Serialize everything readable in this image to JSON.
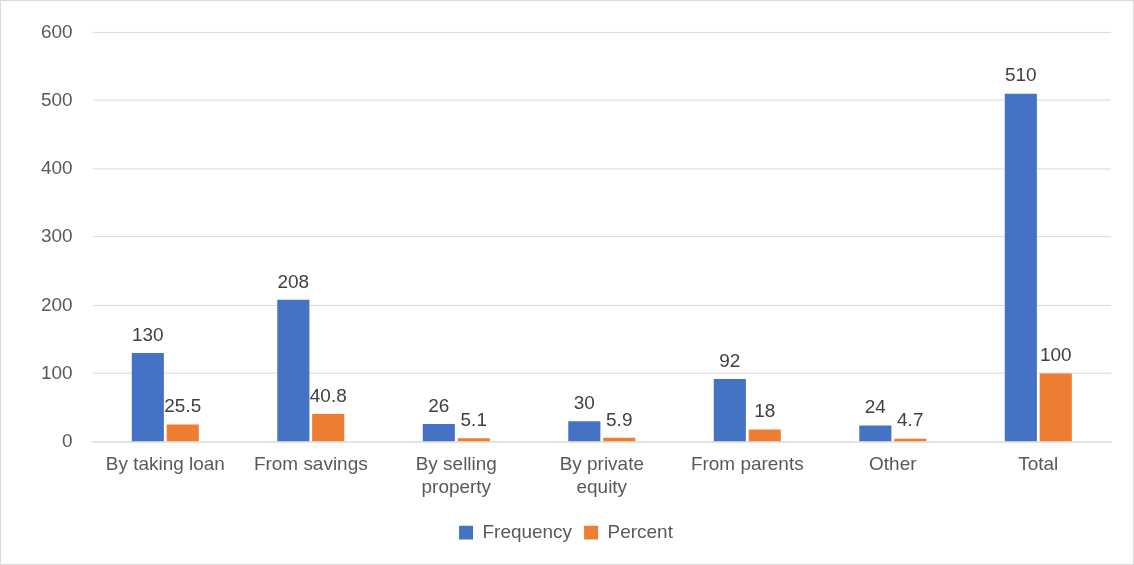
{
  "chart_data": {
    "type": "bar",
    "categories": [
      "By taking loan",
      "From savings",
      "By selling property",
      "By private equity",
      "From parents",
      "Other",
      "Total"
    ],
    "series": [
      {
        "name": "Frequency",
        "color": "#4472c4",
        "values": [
          130,
          208,
          26,
          30,
          92,
          24,
          510
        ]
      },
      {
        "name": "Percent",
        "color": "#ed7d31",
        "values": [
          25.5,
          40.8,
          5.1,
          5.9,
          18,
          4.7,
          100
        ]
      }
    ],
    "ylim": [
      0,
      600
    ],
    "yticks": [
      0,
      100,
      200,
      300,
      400,
      500,
      600
    ],
    "grid": "y",
    "legend": "bottom",
    "data_labels": true
  }
}
